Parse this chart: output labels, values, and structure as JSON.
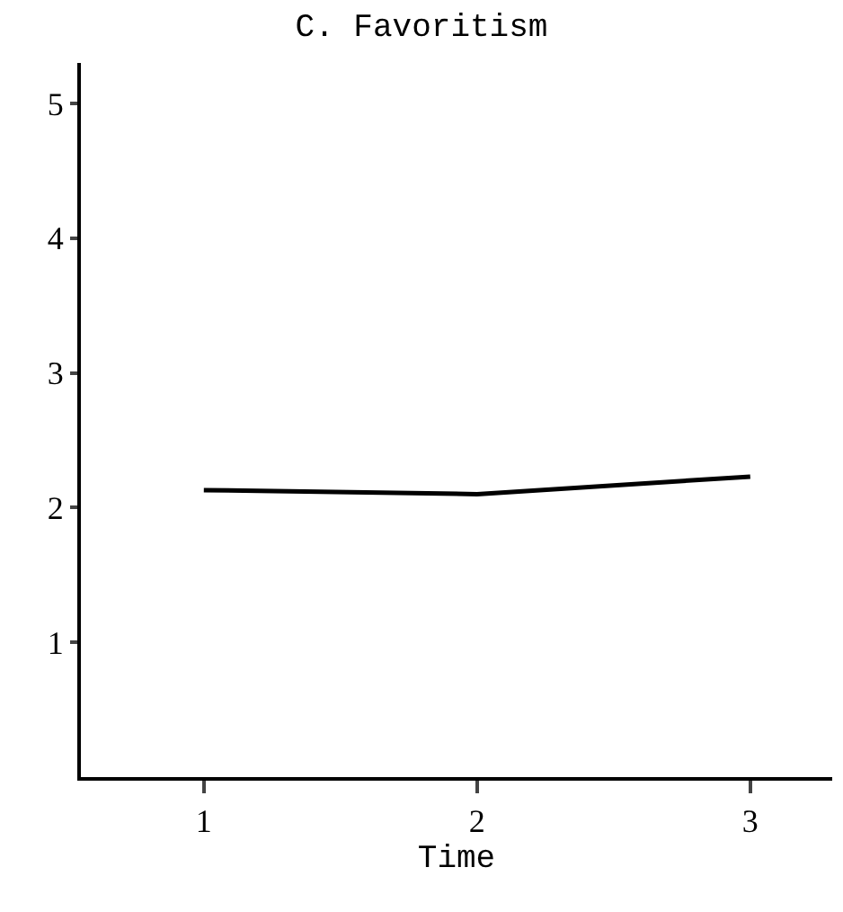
{
  "chart_data": {
    "type": "line",
    "title": "C. Favoritism",
    "xlabel": "Time",
    "x": [
      1,
      2,
      3
    ],
    "series": [
      {
        "color": "#000000",
        "values": [
          2.13,
          2.1,
          2.23
        ]
      }
    ],
    "xlim": [
      0.55,
      3.3
    ],
    "xticks": [
      1,
      2,
      3
    ],
    "ylim": [
      0,
      5.3
    ],
    "yticks": [
      1,
      2,
      3,
      4,
      5
    ],
    "line_style": "solid"
  }
}
